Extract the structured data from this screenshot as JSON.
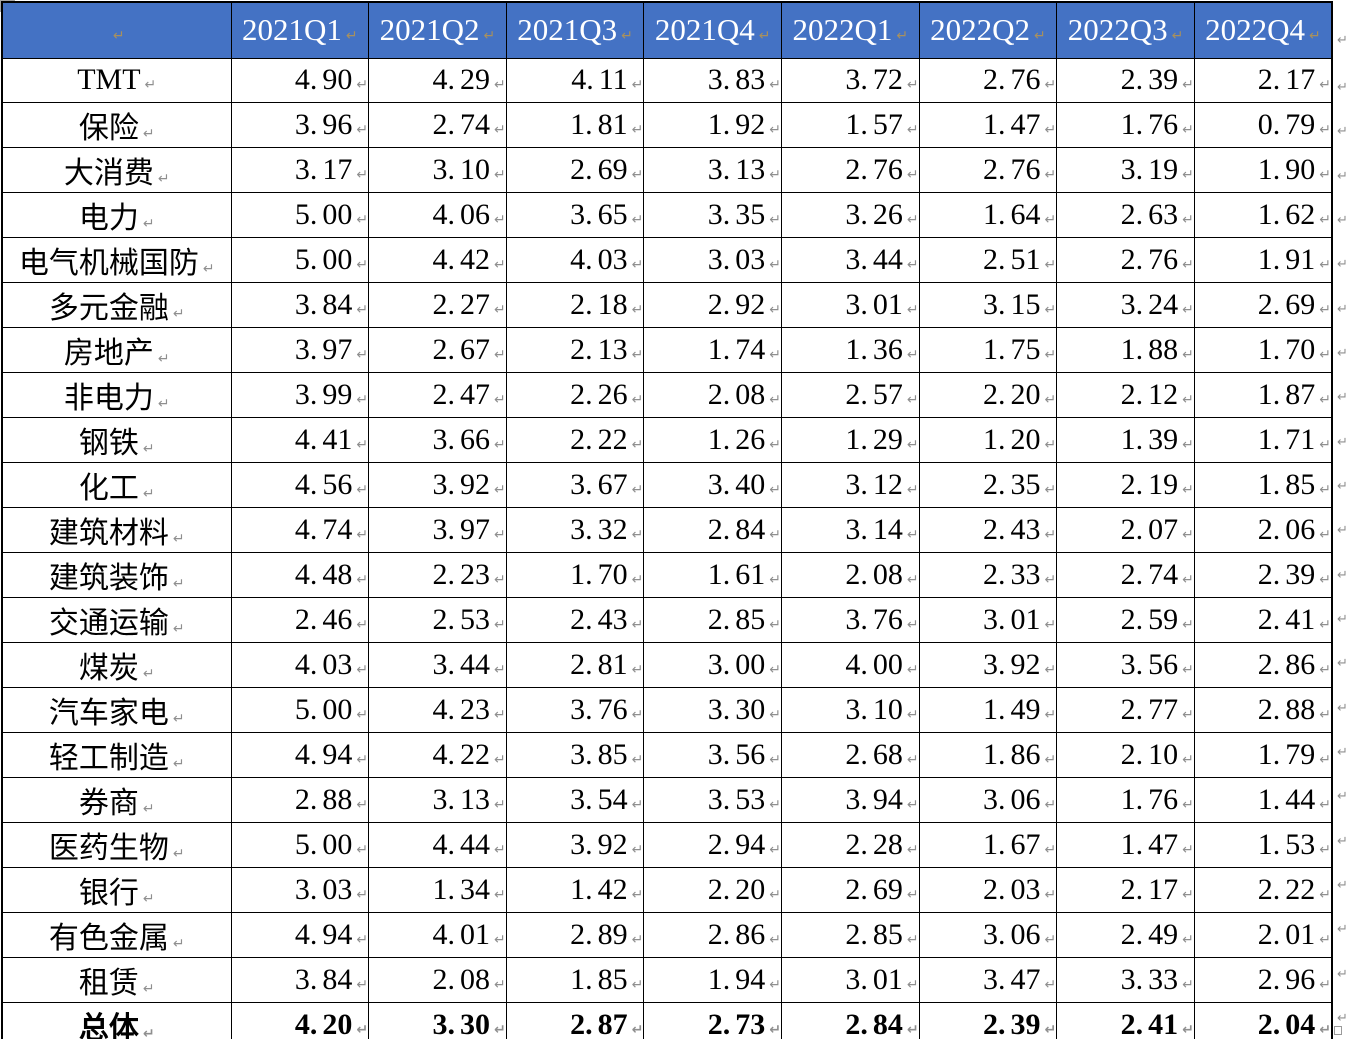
{
  "table": {
    "header": {
      "corner": "",
      "columns": [
        "2021Q1",
        "2021Q2",
        "2021Q3",
        "2021Q4",
        "2022Q1",
        "2022Q2",
        "2022Q3",
        "2022Q4"
      ]
    },
    "rows": [
      {
        "label": "TMT",
        "bold": false,
        "values": [
          "4.90",
          "4.29",
          "4.11",
          "3.83",
          "3.72",
          "2.76",
          "2.39",
          "2.17"
        ]
      },
      {
        "label": "保险",
        "bold": false,
        "values": [
          "3.96",
          "2.74",
          "1.81",
          "1.92",
          "1.57",
          "1.47",
          "1.76",
          "0.79"
        ]
      },
      {
        "label": "大消费",
        "bold": false,
        "values": [
          "3.17",
          "3.10",
          "2.69",
          "3.13",
          "2.76",
          "2.76",
          "3.19",
          "1.90"
        ]
      },
      {
        "label": "电力",
        "bold": false,
        "values": [
          "5.00",
          "4.06",
          "3.65",
          "3.35",
          "3.26",
          "1.64",
          "2.63",
          "1.62"
        ]
      },
      {
        "label": "电气机械国防",
        "bold": false,
        "values": [
          "5.00",
          "4.42",
          "4.03",
          "3.03",
          "3.44",
          "2.51",
          "2.76",
          "1.91"
        ]
      },
      {
        "label": "多元金融",
        "bold": false,
        "values": [
          "3.84",
          "2.27",
          "2.18",
          "2.92",
          "3.01",
          "3.15",
          "3.24",
          "2.69"
        ]
      },
      {
        "label": "房地产",
        "bold": false,
        "values": [
          "3.97",
          "2.67",
          "2.13",
          "1.74",
          "1.36",
          "1.75",
          "1.88",
          "1.70"
        ]
      },
      {
        "label": "非电力",
        "bold": false,
        "values": [
          "3.99",
          "2.47",
          "2.26",
          "2.08",
          "2.57",
          "2.20",
          "2.12",
          "1.87"
        ]
      },
      {
        "label": "钢铁",
        "bold": false,
        "values": [
          "4.41",
          "3.66",
          "2.22",
          "1.26",
          "1.29",
          "1.20",
          "1.39",
          "1.71"
        ]
      },
      {
        "label": "化工",
        "bold": false,
        "values": [
          "4.56",
          "3.92",
          "3.67",
          "3.40",
          "3.12",
          "2.35",
          "2.19",
          "1.85"
        ]
      },
      {
        "label": "建筑材料",
        "bold": false,
        "values": [
          "4.74",
          "3.97",
          "3.32",
          "2.84",
          "3.14",
          "2.43",
          "2.07",
          "2.06"
        ]
      },
      {
        "label": "建筑装饰",
        "bold": false,
        "values": [
          "4.48",
          "2.23",
          "1.70",
          "1.61",
          "2.08",
          "2.33",
          "2.74",
          "2.39"
        ]
      },
      {
        "label": "交通运输",
        "bold": false,
        "values": [
          "2.46",
          "2.53",
          "2.43",
          "2.85",
          "3.76",
          "3.01",
          "2.59",
          "2.41"
        ]
      },
      {
        "label": "煤炭",
        "bold": false,
        "values": [
          "4.03",
          "3.44",
          "2.81",
          "3.00",
          "4.00",
          "3.92",
          "3.56",
          "2.86"
        ]
      },
      {
        "label": "汽车家电",
        "bold": false,
        "values": [
          "5.00",
          "4.23",
          "3.76",
          "3.30",
          "3.10",
          "1.49",
          "2.77",
          "2.88"
        ]
      },
      {
        "label": "轻工制造",
        "bold": false,
        "values": [
          "4.94",
          "4.22",
          "3.85",
          "3.56",
          "2.68",
          "1.86",
          "2.10",
          "1.79"
        ]
      },
      {
        "label": "券商",
        "bold": false,
        "values": [
          "2.88",
          "3.13",
          "3.54",
          "3.53",
          "3.94",
          "3.06",
          "1.76",
          "1.44"
        ]
      },
      {
        "label": "医药生物",
        "bold": false,
        "values": [
          "5.00",
          "4.44",
          "3.92",
          "2.94",
          "2.28",
          "1.67",
          "1.47",
          "1.53"
        ]
      },
      {
        "label": "银行",
        "bold": false,
        "values": [
          "3.03",
          "1.34",
          "1.42",
          "2.20",
          "2.69",
          "2.03",
          "2.17",
          "2.22"
        ]
      },
      {
        "label": "有色金属",
        "bold": false,
        "values": [
          "4.94",
          "4.01",
          "2.89",
          "2.86",
          "2.85",
          "3.06",
          "2.49",
          "2.01"
        ]
      },
      {
        "label": "租赁",
        "bold": false,
        "values": [
          "3.84",
          "2.08",
          "1.85",
          "1.94",
          "3.01",
          "3.47",
          "3.33",
          "2.96"
        ]
      },
      {
        "label": "总体",
        "bold": true,
        "values": [
          "4.20",
          "3.30",
          "2.87",
          "2.73",
          "2.84",
          "2.39",
          "2.41",
          "2.04"
        ]
      }
    ],
    "marks": {
      "end_of_cell": "↵",
      "end_of_row": "↵"
    },
    "colors": {
      "header_bg": "#4472C4",
      "header_text": "#FFFFFF",
      "border": "#000000",
      "body_text": "#000000",
      "header_mark": "#A8905E",
      "body_mark": "#8F8F8F"
    }
  }
}
